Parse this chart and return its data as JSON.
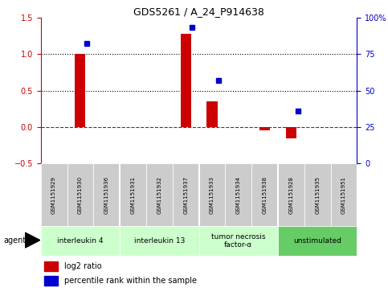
{
  "title": "GDS5261 / A_24_P914638",
  "samples": [
    "GSM1151929",
    "GSM1151930",
    "GSM1151936",
    "GSM1151931",
    "GSM1151932",
    "GSM1151937",
    "GSM1151933",
    "GSM1151934",
    "GSM1151938",
    "GSM1151928",
    "GSM1151935",
    "GSM1151951"
  ],
  "log2_ratio": [
    0.0,
    1.0,
    0.0,
    0.0,
    0.0,
    1.28,
    0.35,
    0.0,
    -0.04,
    -0.15,
    0.0,
    0.0
  ],
  "percentile": [
    null,
    0.82,
    null,
    null,
    null,
    0.93,
    0.57,
    null,
    null,
    0.36,
    null,
    null
  ],
  "agents": [
    {
      "label": "interleukin 4",
      "start": 0,
      "end": 3,
      "color": "#ccffcc"
    },
    {
      "label": "interleukin 13",
      "start": 3,
      "end": 6,
      "color": "#ccffcc"
    },
    {
      "label": "tumor necrosis\nfactor-α",
      "start": 6,
      "end": 9,
      "color": "#ccffcc"
    },
    {
      "label": "unstimulated",
      "start": 9,
      "end": 12,
      "color": "#66cc66"
    }
  ],
  "ylim_left": [
    -0.5,
    1.5
  ],
  "ylim_right": [
    0,
    100
  ],
  "bar_color": "#cc0000",
  "dot_color": "#0000cc",
  "hline_color": "#cc0000",
  "dotline_color": "black",
  "background_color": "#ffffff",
  "sample_box_color": "#cccccc",
  "left_yticks": [
    -0.5,
    0.0,
    0.5,
    1.0,
    1.5
  ],
  "right_yticks": [
    0,
    25,
    50,
    75,
    100
  ],
  "right_yticklabels": [
    "0",
    "25",
    "50",
    "75",
    "100%"
  ],
  "agent_boundaries": [
    3,
    6,
    9
  ]
}
